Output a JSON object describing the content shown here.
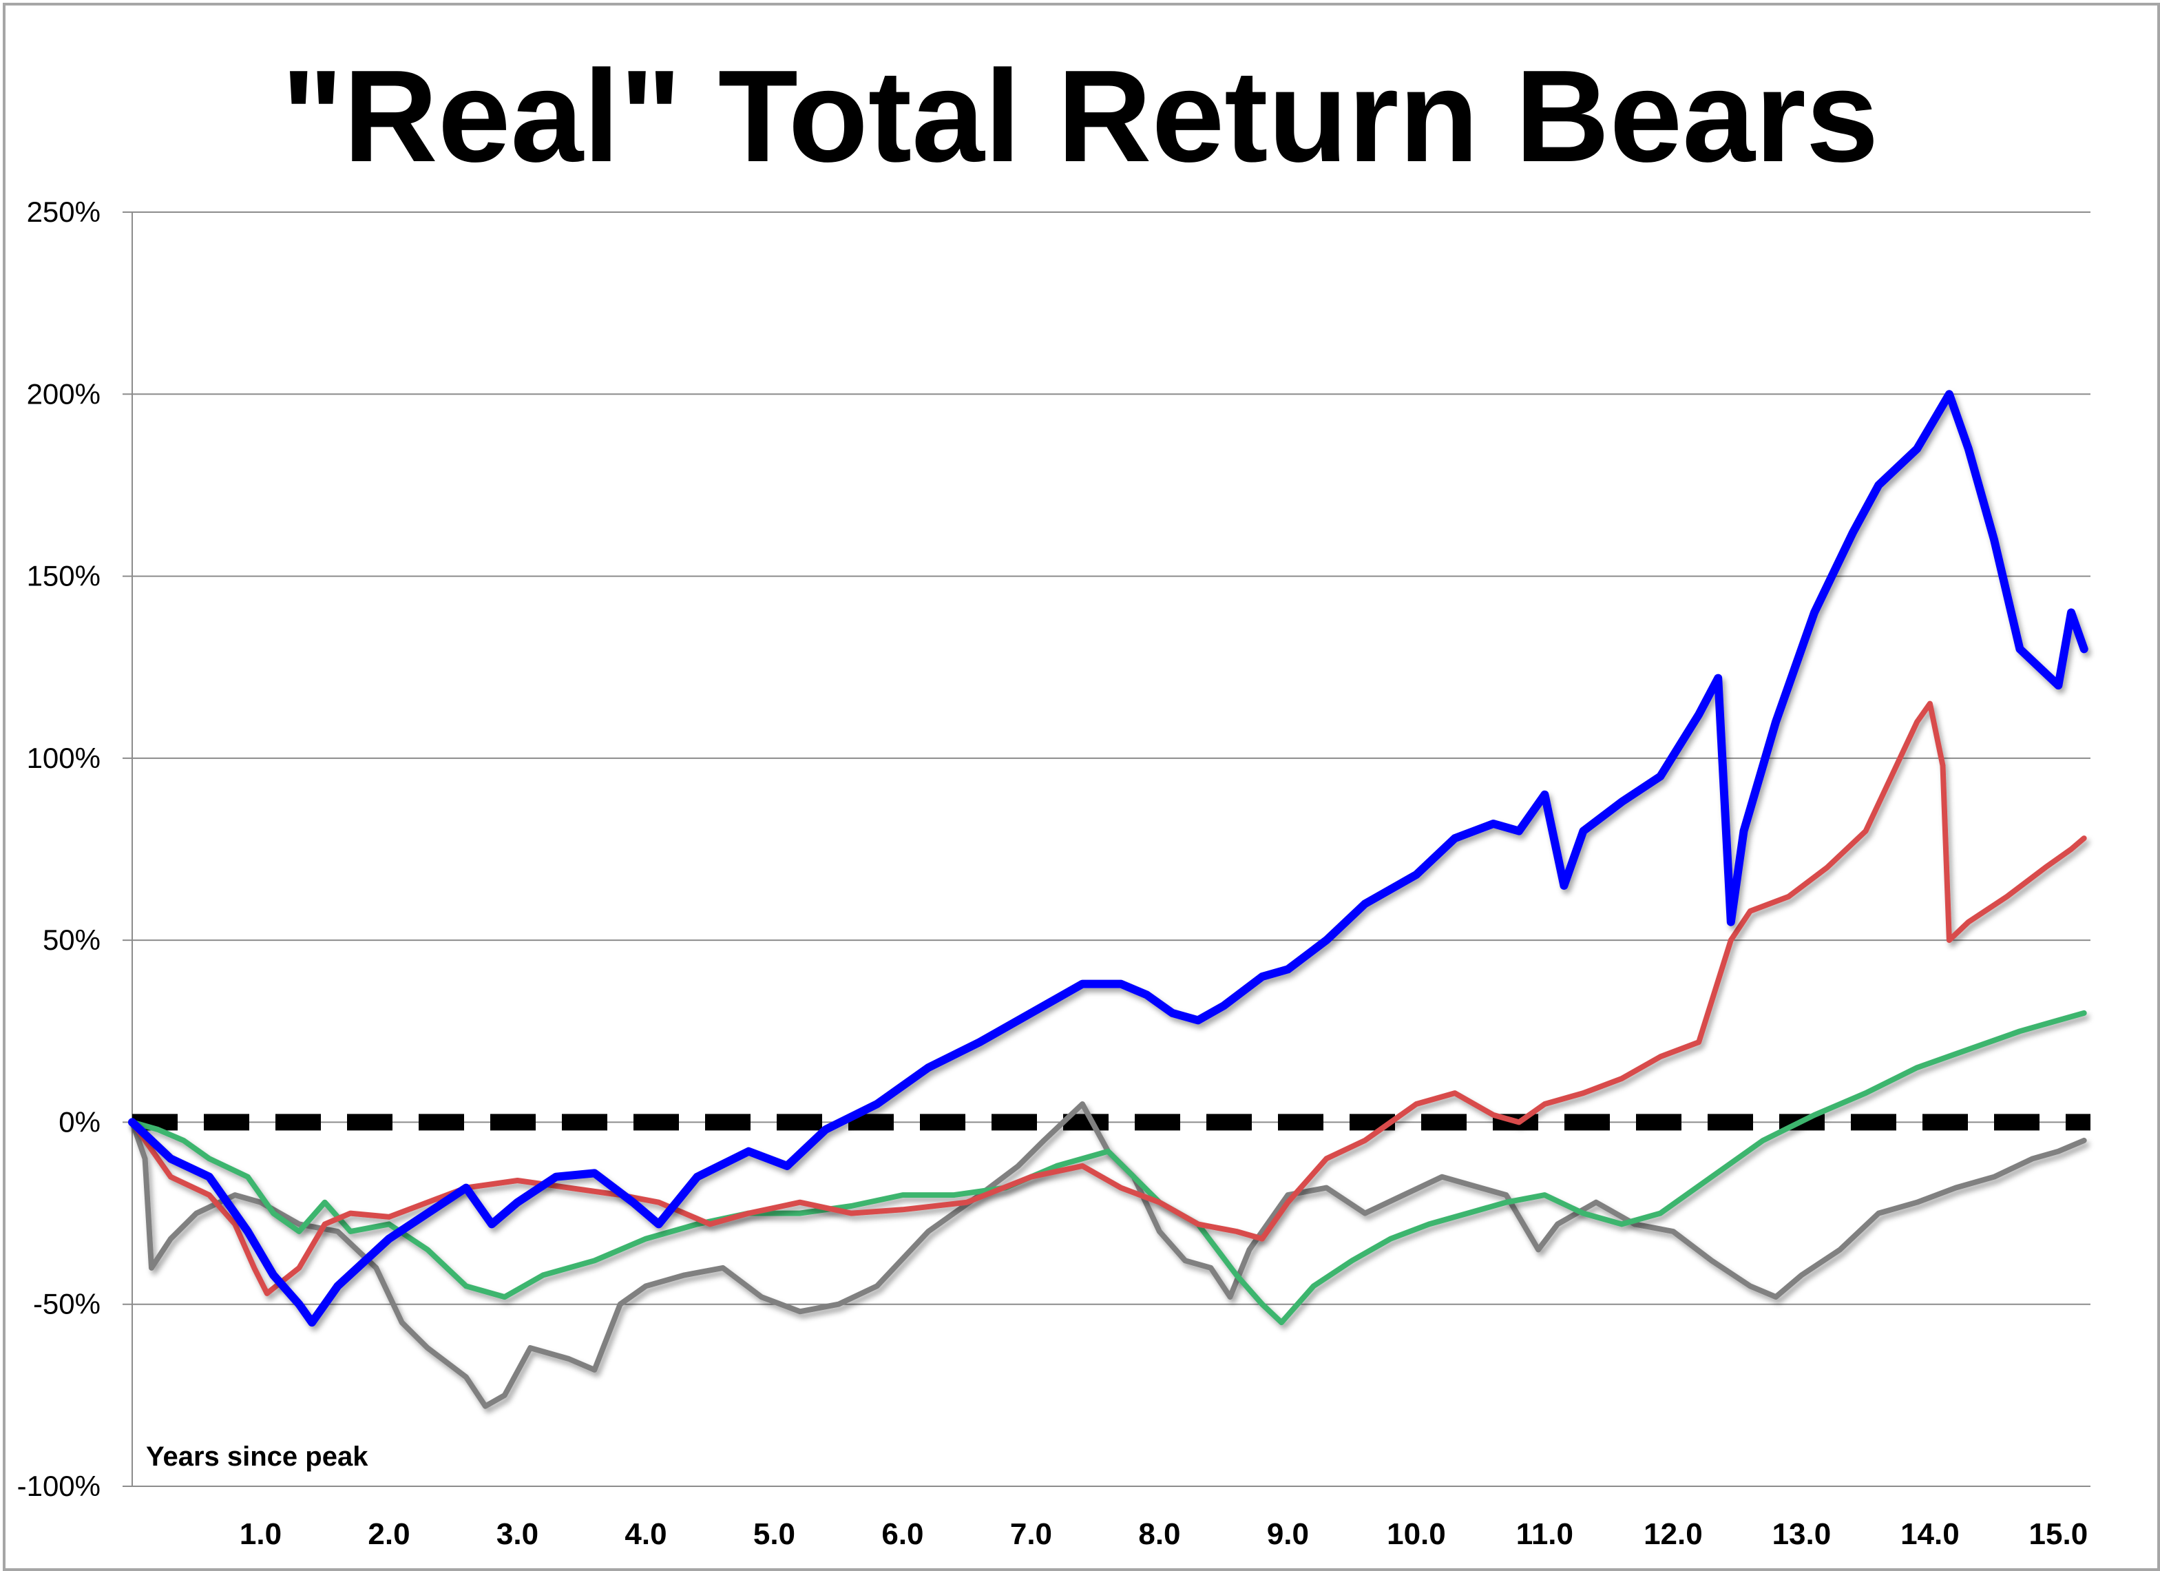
{
  "chart_data": {
    "type": "line",
    "title": "\"Real\" Total Return Bears",
    "xlabel": "Years since peak",
    "ylabel": "",
    "xlim": [
      0,
      15.25
    ],
    "ylim": [
      -100,
      250
    ],
    "xticks": [
      1,
      2,
      3,
      4,
      5,
      6,
      7,
      8,
      9,
      10,
      11,
      12,
      13,
      14,
      15
    ],
    "xtick_labels": [
      "1.0",
      "2.0",
      "3.0",
      "4.0",
      "5.0",
      "6.0",
      "7.0",
      "8.0",
      "9.0",
      "10.0",
      "11.0",
      "12.0",
      "13.0",
      "14.0",
      "15.0"
    ],
    "yticks": [
      -100,
      -50,
      0,
      50,
      100,
      150,
      200,
      250
    ],
    "ytick_labels": [
      "-100%",
      "-50%",
      "0%",
      "50%",
      "100%",
      "150%",
      "200%",
      "250%"
    ],
    "grid": "horizontal",
    "legend": "none",
    "reference_line": {
      "y": 0,
      "style": "dashed",
      "color": "#000000"
    },
    "series": [
      {
        "color": "#0000ff",
        "x": [
          0,
          0.3,
          0.6,
          0.9,
          1.1,
          1.3,
          1.4,
          1.6,
          2.0,
          2.3,
          2.6,
          2.8,
          3.0,
          3.3,
          3.6,
          3.9,
          4.1,
          4.4,
          4.8,
          5.1,
          5.4,
          5.8,
          6.2,
          6.6,
          7.0,
          7.4,
          7.7,
          7.9,
          8.1,
          8.3,
          8.5,
          8.8,
          9.0,
          9.3,
          9.6,
          10.0,
          10.3,
          10.6,
          10.8,
          11.0,
          11.15,
          11.3,
          11.6,
          11.9,
          12.2,
          12.35,
          12.45,
          12.55,
          12.8,
          13.1,
          13.4,
          13.6,
          13.9,
          14.15,
          14.3,
          14.5,
          14.7,
          14.85,
          15.0,
          15.1,
          15.2
        ],
        "y": [
          0,
          -10,
          -15,
          -30,
          -42,
          -50,
          -55,
          -45,
          -32,
          -25,
          -18,
          -28,
          -22,
          -15,
          -14,
          -22,
          -28,
          -15,
          -8,
          -12,
          -2,
          5,
          15,
          22,
          30,
          38,
          38,
          35,
          30,
          28,
          32,
          40,
          42,
          50,
          60,
          68,
          78,
          82,
          80,
          90,
          65,
          80,
          88,
          95,
          112,
          122,
          55,
          80,
          110,
          140,
          162,
          175,
          185,
          200,
          185,
          160,
          130,
          125,
          120,
          140,
          130
        ]
      },
      {
        "color": "#d84c4c",
        "x": [
          0,
          0.3,
          0.6,
          0.8,
          0.95,
          1.05,
          1.3,
          1.5,
          1.7,
          2.0,
          2.3,
          2.6,
          3.0,
          3.4,
          3.8,
          4.1,
          4.5,
          4.8,
          5.2,
          5.6,
          6.0,
          6.5,
          7.0,
          7.4,
          7.7,
          8.0,
          8.3,
          8.6,
          8.8,
          9.0,
          9.3,
          9.6,
          10.0,
          10.3,
          10.6,
          10.8,
          11.0,
          11.3,
          11.6,
          11.9,
          12.2,
          12.45,
          12.6,
          12.9,
          13.2,
          13.5,
          13.7,
          13.9,
          14.0,
          14.1,
          14.15,
          14.3,
          14.6,
          14.9,
          15.1,
          15.2
        ],
        "y": [
          0,
          -15,
          -20,
          -28,
          -40,
          -47,
          -40,
          -28,
          -25,
          -26,
          -22,
          -18,
          -16,
          -18,
          -20,
          -22,
          -28,
          -25,
          -22,
          -25,
          -24,
          -22,
          -15,
          -12,
          -18,
          -22,
          -28,
          -30,
          -32,
          -22,
          -10,
          -5,
          5,
          8,
          2,
          0,
          5,
          8,
          12,
          18,
          22,
          50,
          58,
          62,
          70,
          80,
          95,
          110,
          115,
          98,
          50,
          55,
          62,
          70,
          75,
          78
        ]
      },
      {
        "color": "#3cb56e",
        "x": [
          0,
          0.2,
          0.4,
          0.6,
          0.9,
          1.1,
          1.3,
          1.5,
          1.7,
          2.0,
          2.3,
          2.6,
          2.9,
          3.2,
          3.6,
          4.0,
          4.4,
          4.8,
          5.2,
          5.6,
          6.0,
          6.4,
          6.8,
          7.2,
          7.6,
          8.0,
          8.3,
          8.6,
          8.8,
          8.95,
          9.2,
          9.5,
          9.8,
          10.1,
          10.4,
          10.7,
          11.0,
          11.3,
          11.6,
          11.9,
          12.3,
          12.7,
          13.1,
          13.5,
          13.9,
          14.3,
          14.7,
          15.0,
          15.2
        ],
        "y": [
          0,
          -2,
          -5,
          -10,
          -15,
          -25,
          -30,
          -22,
          -30,
          -28,
          -35,
          -45,
          -48,
          -42,
          -38,
          -32,
          -28,
          -25,
          -25,
          -23,
          -20,
          -20,
          -18,
          -12,
          -8,
          -22,
          -28,
          -42,
          -50,
          -55,
          -45,
          -38,
          -32,
          -28,
          -25,
          -22,
          -20,
          -25,
          -28,
          -25,
          -15,
          -5,
          2,
          8,
          15,
          20,
          25,
          28,
          30
        ]
      },
      {
        "color": "#808080",
        "x": [
          0,
          0.1,
          0.15,
          0.3,
          0.5,
          0.8,
          1.0,
          1.3,
          1.6,
          1.9,
          2.1,
          2.3,
          2.6,
          2.75,
          2.9,
          3.1,
          3.4,
          3.6,
          3.8,
          4.0,
          4.3,
          4.6,
          4.9,
          5.2,
          5.5,
          5.8,
          6.2,
          6.6,
          6.9,
          7.1,
          7.4,
          7.6,
          7.8,
          8.0,
          8.2,
          8.4,
          8.55,
          8.7,
          9.0,
          9.3,
          9.6,
          9.9,
          10.2,
          10.5,
          10.7,
          10.95,
          11.1,
          11.4,
          11.7,
          12.0,
          12.3,
          12.6,
          12.8,
          13.0,
          13.3,
          13.6,
          13.9,
          14.2,
          14.5,
          14.8,
          15.0,
          15.2
        ],
        "y": [
          0,
          -10,
          -40,
          -32,
          -25,
          -20,
          -22,
          -28,
          -30,
          -40,
          -55,
          -62,
          -70,
          -78,
          -75,
          -62,
          -65,
          -68,
          -50,
          -45,
          -42,
          -40,
          -48,
          -52,
          -50,
          -45,
          -30,
          -20,
          -12,
          -5,
          5,
          -8,
          -15,
          -30,
          -38,
          -40,
          -48,
          -35,
          -20,
          -18,
          -25,
          -20,
          -15,
          -18,
          -20,
          -35,
          -28,
          -22,
          -28,
          -30,
          -38,
          -45,
          -48,
          -42,
          -35,
          -25,
          -22,
          -18,
          -15,
          -10,
          -8,
          -5
        ]
      }
    ]
  }
}
